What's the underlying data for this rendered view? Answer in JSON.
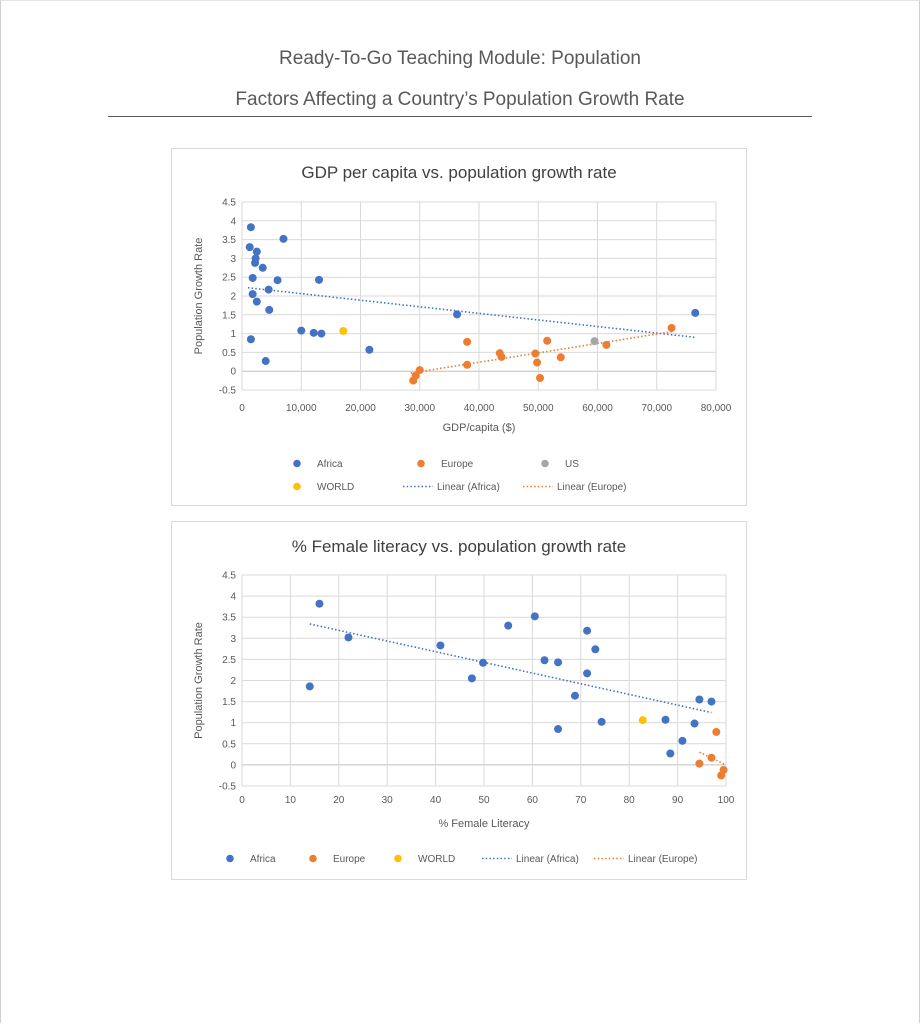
{
  "header": {
    "module_title": "Ready-To-Go Teaching Module: Population",
    "subtitle": "Factors Affecting a Country’s Population Growth Rate"
  },
  "colors": {
    "africa": "#4472C4",
    "europe": "#ED7D31",
    "us": "#A5A5A5",
    "world": "#FFC000",
    "grid": "#d9d9d9",
    "text": "#595959"
  },
  "chart_data": [
    {
      "type": "scatter",
      "title": "GDP per capita vs. population growth rate",
      "xlabel": "GDP/capita ($)",
      "ylabel": "Population Growth Rate",
      "xlim": [
        0,
        80000
      ],
      "ylim": [
        -0.5,
        4.5
      ],
      "x_ticks": [
        0,
        10000,
        20000,
        30000,
        40000,
        50000,
        60000,
        70000,
        80000
      ],
      "x_tick_labels": [
        "0",
        "10,000",
        "20,000",
        "30,000",
        "40,000",
        "50,000",
        "60,000",
        "70,000",
        "80,000"
      ],
      "y_ticks": [
        -0.5,
        0,
        0.5,
        1,
        1.5,
        2,
        2.5,
        3,
        3.5,
        4,
        4.5
      ],
      "y_tick_labels": [
        "-0.5",
        "0",
        "0.5",
        "1",
        "1.5",
        "2",
        "2.5",
        "3",
        "3.5",
        "4",
        "4.5"
      ],
      "grid": true,
      "legend_position": "bottom",
      "legend": [
        {
          "label": "Africa",
          "kind": "marker",
          "color": "#4472C4"
        },
        {
          "label": "Europe",
          "kind": "marker",
          "color": "#ED7D31"
        },
        {
          "label": "US",
          "kind": "marker",
          "color": "#A5A5A5"
        },
        {
          "label": "WORLD",
          "kind": "marker",
          "color": "#FFC000"
        },
        {
          "label": "Linear (Africa)",
          "kind": "line",
          "color": "#4472C4"
        },
        {
          "label": "Linear (Europe)",
          "kind": "line",
          "color": "#ED7D31"
        }
      ],
      "series": [
        {
          "name": "Africa",
          "color": "#4472C4",
          "points": [
            [
              1500,
              3.83
            ],
            [
              7000,
              3.52
            ],
            [
              1300,
              3.3
            ],
            [
              2500,
              3.18
            ],
            [
              2300,
              3.0
            ],
            [
              2200,
              2.88
            ],
            [
              3500,
              2.75
            ],
            [
              6000,
              2.42
            ],
            [
              13000,
              2.43
            ],
            [
              1800,
              2.48
            ],
            [
              4500,
              2.17
            ],
            [
              1800,
              2.05
            ],
            [
              2500,
              1.85
            ],
            [
              4600,
              1.63
            ],
            [
              36300,
              1.51
            ],
            [
              76500,
              1.55
            ],
            [
              10000,
              1.08
            ],
            [
              12100,
              1.02
            ],
            [
              13400,
              1.0
            ],
            [
              1500,
              0.85
            ],
            [
              21500,
              0.57
            ],
            [
              4000,
              0.27
            ]
          ]
        },
        {
          "name": "Europe",
          "color": "#ED7D31",
          "points": [
            [
              72500,
              1.15
            ],
            [
              38000,
              0.78
            ],
            [
              51500,
              0.81
            ],
            [
              61500,
              0.7
            ],
            [
              43500,
              0.48
            ],
            [
              49500,
              0.47
            ],
            [
              43800,
              0.38
            ],
            [
              53800,
              0.37
            ],
            [
              49800,
              0.23
            ],
            [
              38000,
              0.17
            ],
            [
              50300,
              -0.18
            ],
            [
              30000,
              0.03
            ],
            [
              29300,
              -0.12
            ],
            [
              28900,
              -0.25
            ]
          ]
        },
        {
          "name": "US",
          "color": "#A5A5A5",
          "points": [
            [
              59500,
              0.8
            ]
          ]
        },
        {
          "name": "WORLD",
          "color": "#FFC000",
          "points": [
            [
              17100,
              1.07
            ]
          ]
        }
      ],
      "trendlines": [
        {
          "name": "Linear (Africa)",
          "color": "#4472C4",
          "from": [
            1000,
            2.22
          ],
          "to": [
            76500,
            0.9
          ]
        },
        {
          "name": "Linear (Europe)",
          "color": "#ED7D31",
          "from": [
            28500,
            -0.05
          ],
          "to": [
            72500,
            1.05
          ]
        }
      ]
    },
    {
      "type": "scatter",
      "title": "% Female literacy vs. population growth rate",
      "xlabel": "% Female Literacy",
      "ylabel": "Population Growth Rate",
      "xlim": [
        0,
        100
      ],
      "ylim": [
        -0.5,
        4.5
      ],
      "x_ticks": [
        0,
        10,
        20,
        30,
        40,
        50,
        60,
        70,
        80,
        90,
        100
      ],
      "x_tick_labels": [
        "0",
        "10",
        "20",
        "30",
        "40",
        "50",
        "60",
        "70",
        "80",
        "90",
        "100"
      ],
      "y_ticks": [
        -0.5,
        0,
        0.5,
        1,
        1.5,
        2,
        2.5,
        3,
        3.5,
        4,
        4.5
      ],
      "y_tick_labels": [
        "-0.5",
        "0",
        "0.5",
        "1",
        "1.5",
        "2",
        "2.5",
        "3",
        "3.5",
        "4",
        "4.5"
      ],
      "grid": true,
      "legend_position": "bottom",
      "legend": [
        {
          "label": "Africa",
          "kind": "marker",
          "color": "#4472C4"
        },
        {
          "label": "Europe",
          "kind": "marker",
          "color": "#ED7D31"
        },
        {
          "label": "WORLD",
          "kind": "marker",
          "color": "#FFC000"
        },
        {
          "label": "Linear (Africa)",
          "kind": "line",
          "color": "#4472C4"
        },
        {
          "label": "Linear (Europe)",
          "kind": "line",
          "color": "#ED7D31"
        }
      ],
      "series": [
        {
          "name": "Africa",
          "color": "#4472C4",
          "points": [
            [
              16,
              3.82
            ],
            [
              60.5,
              3.52
            ],
            [
              55,
              3.3
            ],
            [
              71.3,
              3.18
            ],
            [
              22,
              3.02
            ],
            [
              41,
              2.83
            ],
            [
              73,
              2.74
            ],
            [
              62.5,
              2.48
            ],
            [
              65.3,
              2.43
            ],
            [
              49.8,
              2.42
            ],
            [
              71.3,
              2.17
            ],
            [
              47.5,
              2.05
            ],
            [
              14,
              1.86
            ],
            [
              68.8,
              1.64
            ],
            [
              94.5,
              1.55
            ],
            [
              97,
              1.5
            ],
            [
              87.5,
              1.07
            ],
            [
              74.3,
              1.02
            ],
            [
              93.5,
              0.98
            ],
            [
              65.3,
              0.85
            ],
            [
              91,
              0.57
            ],
            [
              88.5,
              0.27
            ]
          ]
        },
        {
          "name": "Europe",
          "color": "#ED7D31",
          "points": [
            [
              98,
              0.78
            ],
            [
              97,
              0.17
            ],
            [
              94.5,
              0.03
            ],
            [
              99.5,
              -0.12
            ],
            [
              99,
              -0.25
            ]
          ]
        },
        {
          "name": "WORLD",
          "color": "#FFC000",
          "points": [
            [
              82.8,
              1.06
            ]
          ]
        }
      ],
      "trendlines": [
        {
          "name": "Linear (Africa)",
          "color": "#4472C4",
          "from": [
            14,
            3.34
          ],
          "to": [
            97,
            1.24
          ]
        },
        {
          "name": "Linear (Europe)",
          "color": "#ED7D31",
          "from": [
            94.5,
            0.3
          ],
          "to": [
            100,
            0.0
          ]
        }
      ]
    }
  ]
}
